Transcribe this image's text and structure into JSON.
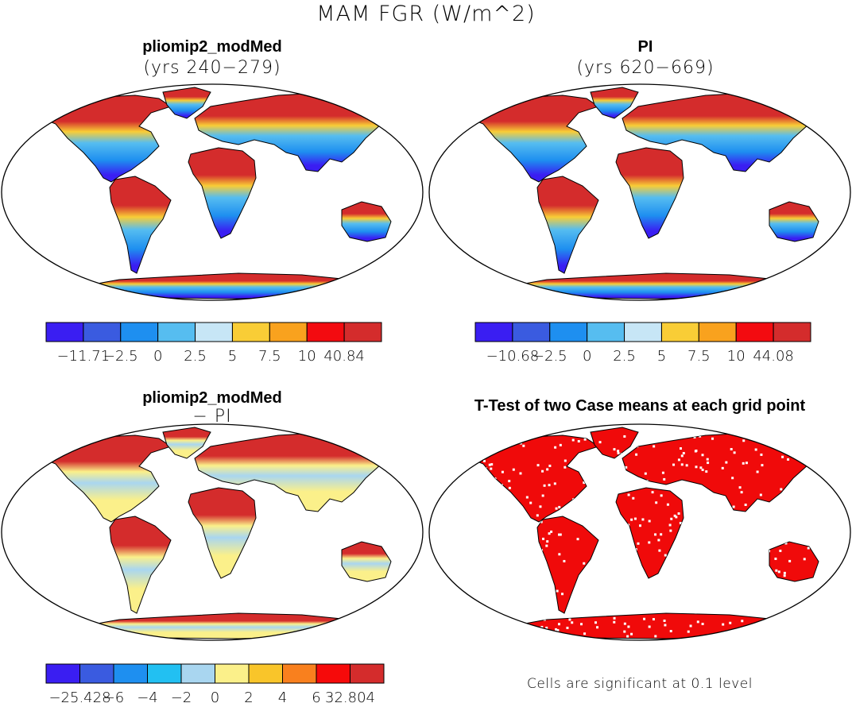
{
  "main_title": "MAM FGR (W/m^2)",
  "panels": [
    {
      "title": "pliomip2_modMed",
      "subtitle": "(yrs 240−279)",
      "colorbar": {
        "labels": [
          "−11.71",
          "−2.5",
          "0",
          "2.5",
          "5",
          "7.5",
          "10",
          "40.84"
        ],
        "colors": [
          "#3a1ef2",
          "#3a5be0",
          "#1e8ff0",
          "#56bdf0",
          "#c7e6f6",
          "#f9cd36",
          "#f9a21e",
          "#f30b10",
          "#d42c2c"
        ]
      }
    },
    {
      "title": "PI",
      "subtitle": "(yrs 620−669)",
      "colorbar": {
        "labels": [
          "−10.68",
          "−2.5",
          "0",
          "2.5",
          "5",
          "7.5",
          "10",
          "44.08"
        ],
        "colors": [
          "#3a1ef2",
          "#3a5be0",
          "#1e8ff0",
          "#56bdf0",
          "#c7e6f6",
          "#f9cd36",
          "#f9a21e",
          "#f30b10",
          "#d42c2c"
        ]
      }
    },
    {
      "title": "pliomip2_modMed",
      "subtitle": "− PI",
      "colorbar": {
        "labels": [
          "−25.428",
          "−6",
          "−4",
          "−2",
          "0",
          "2",
          "4",
          "6",
          "32.804"
        ],
        "colors": [
          "#3a1ef2",
          "#3a5be0",
          "#1e8ff0",
          "#22c0f2",
          "#a9d6f0",
          "#fbf08a",
          "#f9c52a",
          "#f9801e",
          "#f60a0a",
          "#d42c2c"
        ]
      }
    },
    {
      "title": "T-Test of two Case means at each grid point",
      "footnote": "Cells are significant at 0.1 level",
      "fill_color": "#f00a0a"
    }
  ],
  "map_palettes": {
    "p1": {
      "north": "#d42c2c",
      "mid": "#f9cd36",
      "tropic": "#56bdf0",
      "south": "#1e8ff0",
      "polar": "#3a1ef2"
    },
    "p2": {
      "north": "#d42c2c",
      "mid": "#f9cd36",
      "tropic": "#56bdf0",
      "south": "#1e8ff0",
      "polar": "#3a1ef2"
    },
    "p3": {
      "north": "#d42c2c",
      "mid": "#fbf08a",
      "tropic": "#a9d6f0",
      "south": "#fbf08a",
      "polar": "#fbf08a"
    },
    "p4": {
      "north": "#f00a0a",
      "mid": "#f00a0a",
      "tropic": "#f00a0a",
      "south": "#f00a0a",
      "polar": "#f00a0a"
    }
  }
}
